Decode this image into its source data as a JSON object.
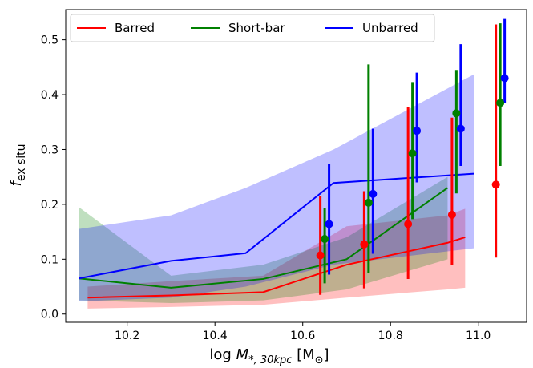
{
  "chart_data": {
    "type": "line",
    "xlabel": "log M_{*,30kpc} [M_⊙]",
    "xlabel_parts": {
      "main": "log ",
      "sym": "M",
      "sub": "*, 30kpc",
      "rest": " [M",
      "sun_sub": "⊙",
      "end": "]"
    },
    "ylabel_parts": {
      "sym": "f",
      "sub": "ex situ"
    },
    "xlim": [
      10.06,
      11.11
    ],
    "ylim": [
      -0.015,
      0.555
    ],
    "xticks": [
      10.2,
      10.4,
      10.6,
      10.8,
      11.0
    ],
    "xtick_labels": [
      "10.2",
      "10.4",
      "10.6",
      "10.8",
      "11.0"
    ],
    "yticks": [
      0.0,
      0.1,
      0.2,
      0.3,
      0.4,
      0.5
    ],
    "ytick_labels": [
      "0.0",
      "0.1",
      "0.2",
      "0.3",
      "0.4",
      "0.5"
    ],
    "legend_position": "top, horizontal",
    "series": [
      {
        "name": "Barred",
        "color": "#ff0000",
        "line_x": [
          10.11,
          10.3,
          10.51,
          10.7,
          10.93,
          10.97
        ],
        "line_y": [
          0.03,
          0.034,
          0.04,
          0.09,
          0.13,
          0.14
        ],
        "band_x": [
          10.11,
          10.3,
          10.51,
          10.7,
          10.93,
          10.97
        ],
        "band_low": [
          0.01,
          0.013,
          0.017,
          0.03,
          0.045,
          0.048
        ],
        "band_high": [
          0.05,
          0.06,
          0.07,
          0.16,
          0.18,
          0.192
        ],
        "points_x": [
          10.64,
          10.74,
          10.84,
          10.94,
          11.04
        ],
        "points_y": [
          0.107,
          0.127,
          0.164,
          0.181,
          0.236
        ],
        "err_low": [
          0.035,
          0.047,
          0.064,
          0.09,
          0.103
        ],
        "err_high": [
          0.215,
          0.224,
          0.378,
          0.358,
          0.528
        ]
      },
      {
        "name": "Short-bar",
        "color": "#008000",
        "line_x": [
          10.09,
          10.3,
          10.51,
          10.7,
          10.93
        ],
        "line_y": [
          0.065,
          0.048,
          0.064,
          0.1,
          0.23
        ],
        "band_x": [
          10.09,
          10.3,
          10.51,
          10.7,
          10.93
        ],
        "band_low": [
          0.025,
          0.02,
          0.025,
          0.045,
          0.1
        ],
        "band_high": [
          0.195,
          0.07,
          0.09,
          0.14,
          0.25
        ],
        "points_x": [
          10.65,
          10.75,
          10.85,
          10.95,
          11.05
        ],
        "points_y": [
          0.137,
          0.203,
          0.293,
          0.366,
          0.385
        ],
        "err_low": [
          0.056,
          0.075,
          0.173,
          0.22,
          0.27
        ],
        "err_high": [
          0.193,
          0.455,
          0.423,
          0.445,
          0.53
        ]
      },
      {
        "name": "Unbarred",
        "color": "#0000ff",
        "line_x": [
          10.09,
          10.3,
          10.47,
          10.67,
          10.99
        ],
        "line_y": [
          0.065,
          0.097,
          0.111,
          0.239,
          0.256
        ],
        "band_x": [
          10.09,
          10.3,
          10.47,
          10.67,
          10.99
        ],
        "band_low": [
          0.023,
          0.03,
          0.05,
          0.09,
          0.12
        ],
        "band_high": [
          0.155,
          0.18,
          0.23,
          0.3,
          0.437
        ],
        "points_x": [
          10.66,
          10.76,
          10.86,
          10.96,
          11.06
        ],
        "points_y": [
          0.164,
          0.219,
          0.334,
          0.338,
          0.43
        ],
        "err_low": [
          0.072,
          0.11,
          0.24,
          0.27,
          0.385
        ],
        "err_high": [
          0.273,
          0.338,
          0.44,
          0.492,
          0.538
        ]
      }
    ]
  }
}
